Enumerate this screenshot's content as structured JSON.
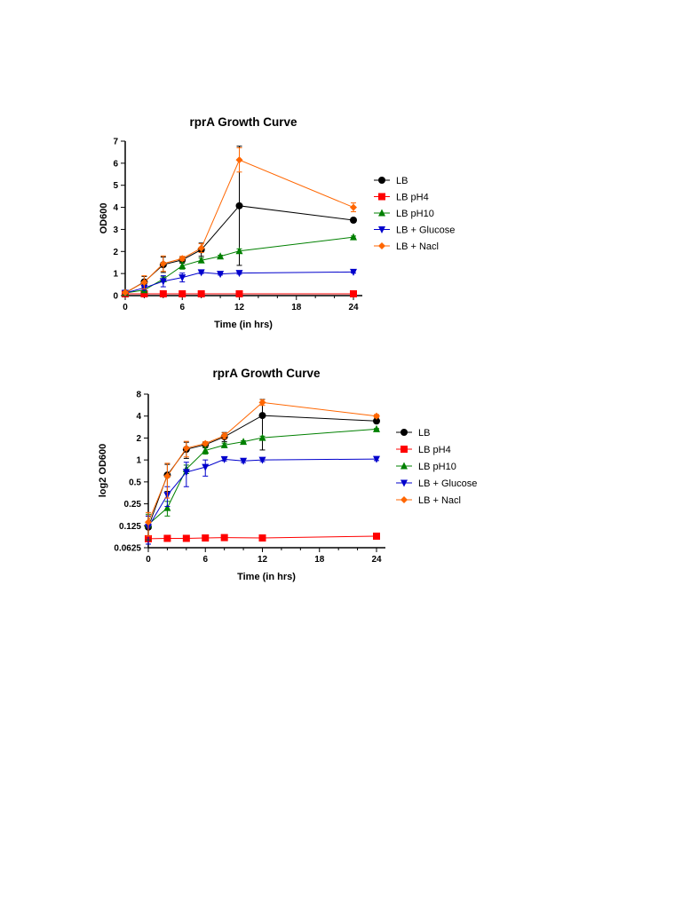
{
  "chart_data": [
    {
      "type": "line",
      "title": "rprA Growth Curve",
      "xlabel": "Time (in hrs)",
      "ylabel": "OD600",
      "xlim": [
        0,
        24
      ],
      "ylim": [
        0,
        7
      ],
      "xticks": [
        "0",
        "6",
        "12",
        "18",
        "24"
      ],
      "yticks": [
        "0",
        "1",
        "2",
        "3",
        "4",
        "5",
        "6",
        "7"
      ],
      "yscale": "linear",
      "legend": "right",
      "series": [
        {
          "name": "LB",
          "color": "#000000",
          "marker": "circle",
          "x": [
            0,
            2,
            4,
            6,
            8,
            12,
            24
          ],
          "y": [
            0.12,
            0.62,
            1.4,
            1.62,
            2.08,
            4.07,
            3.42
          ],
          "err": [
            0.05,
            0.25,
            0.35,
            0.15,
            0.3,
            2.7,
            0.1
          ]
        },
        {
          "name": "LB pH4",
          "color": "#ff0000",
          "marker": "square",
          "x": [
            0,
            2,
            4,
            6,
            8,
            12,
            24
          ],
          "y": [
            0.08,
            0.08,
            0.08,
            0.08,
            0.08,
            0.08,
            0.08
          ],
          "err": [
            0,
            0,
            0,
            0,
            0,
            0,
            0
          ]
        },
        {
          "name": "LB pH10",
          "color": "#008000",
          "marker": "triangle-up",
          "x": [
            0,
            2,
            4,
            6,
            8,
            10,
            12,
            24
          ],
          "y": [
            0.12,
            0.25,
            0.75,
            1.35,
            1.6,
            1.78,
            2.02,
            2.65
          ],
          "err": [
            0.05,
            0.05,
            0.1,
            0.15,
            0.1,
            0.05,
            0.1,
            0.05
          ]
        },
        {
          "name": "LB + Glucose",
          "color": "#0000cc",
          "marker": "triangle-down",
          "x": [
            0,
            2,
            4,
            6,
            8,
            10,
            12,
            24
          ],
          "y": [
            0.12,
            0.35,
            0.65,
            0.82,
            1.05,
            0.98,
            1.02,
            1.07
          ],
          "err": [
            0.05,
            0.1,
            0.25,
            0.2,
            0.05,
            0.05,
            0.05,
            0.05
          ]
        },
        {
          "name": "LB + Nacl",
          "color": "#ff6600",
          "marker": "diamond",
          "x": [
            0,
            2,
            4,
            6,
            8,
            12,
            24
          ],
          "y": [
            0.14,
            0.6,
            1.45,
            1.68,
            2.15,
            6.15,
            4.0
          ],
          "err": [
            0.05,
            0.3,
            0.35,
            0.1,
            0.2,
            0.55,
            0.2
          ]
        }
      ]
    },
    {
      "type": "line",
      "title": "rprA Growth Curve",
      "xlabel": "Time (in hrs)",
      "ylabel": "log2 OD600",
      "xlim": [
        0,
        24
      ],
      "ylim": [
        0.0625,
        8
      ],
      "xticks": [
        "0",
        "6",
        "12",
        "18",
        "24"
      ],
      "yticks": [
        "0.0625",
        "0.125",
        "0.25",
        "0.5",
        "1",
        "2",
        "4",
        "8"
      ],
      "yscale": "log2",
      "legend": "right",
      "series": [
        {
          "name": "LB",
          "color": "#000000",
          "marker": "circle",
          "x": [
            0,
            2,
            4,
            6,
            8,
            12,
            24
          ],
          "y": [
            0.12,
            0.62,
            1.4,
            1.62,
            2.08,
            4.07,
            3.42
          ],
          "err": [
            0.05,
            0.25,
            0.35,
            0.15,
            0.3,
            2.7,
            0.1
          ]
        },
        {
          "name": "LB pH4",
          "color": "#ff0000",
          "marker": "square",
          "x": [
            0,
            2,
            4,
            6,
            8,
            12,
            24
          ],
          "y": [
            0.083,
            0.084,
            0.084,
            0.085,
            0.086,
            0.085,
            0.09
          ],
          "err": [
            0,
            0,
            0,
            0,
            0,
            0,
            0
          ]
        },
        {
          "name": "LB pH10",
          "color": "#008000",
          "marker": "triangle-up",
          "x": [
            0,
            2,
            4,
            6,
            8,
            10,
            12,
            24
          ],
          "y": [
            0.13,
            0.22,
            0.75,
            1.35,
            1.6,
            1.78,
            2.02,
            2.65
          ],
          "err": [
            0.05,
            0.05,
            0.1,
            0.15,
            0.1,
            0.05,
            0.1,
            0.05
          ]
        },
        {
          "name": "LB + Glucose",
          "color": "#0000cc",
          "marker": "triangle-down",
          "x": [
            0,
            2,
            4,
            6,
            8,
            10,
            12,
            24
          ],
          "y": [
            0.12,
            0.33,
            0.68,
            0.8,
            1.02,
            0.97,
            1.0,
            1.03
          ],
          "err": [
            0.05,
            0.1,
            0.25,
            0.2,
            0.05,
            0.05,
            0.05,
            0.05
          ]
        },
        {
          "name": "LB + Nacl",
          "color": "#ff6600",
          "marker": "diamond",
          "x": [
            0,
            2,
            4,
            6,
            8,
            12,
            24
          ],
          "y": [
            0.14,
            0.6,
            1.45,
            1.68,
            2.15,
            6.15,
            4.0
          ],
          "err": [
            0.05,
            0.3,
            0.35,
            0.1,
            0.2,
            0.55,
            0.2
          ]
        }
      ]
    }
  ]
}
